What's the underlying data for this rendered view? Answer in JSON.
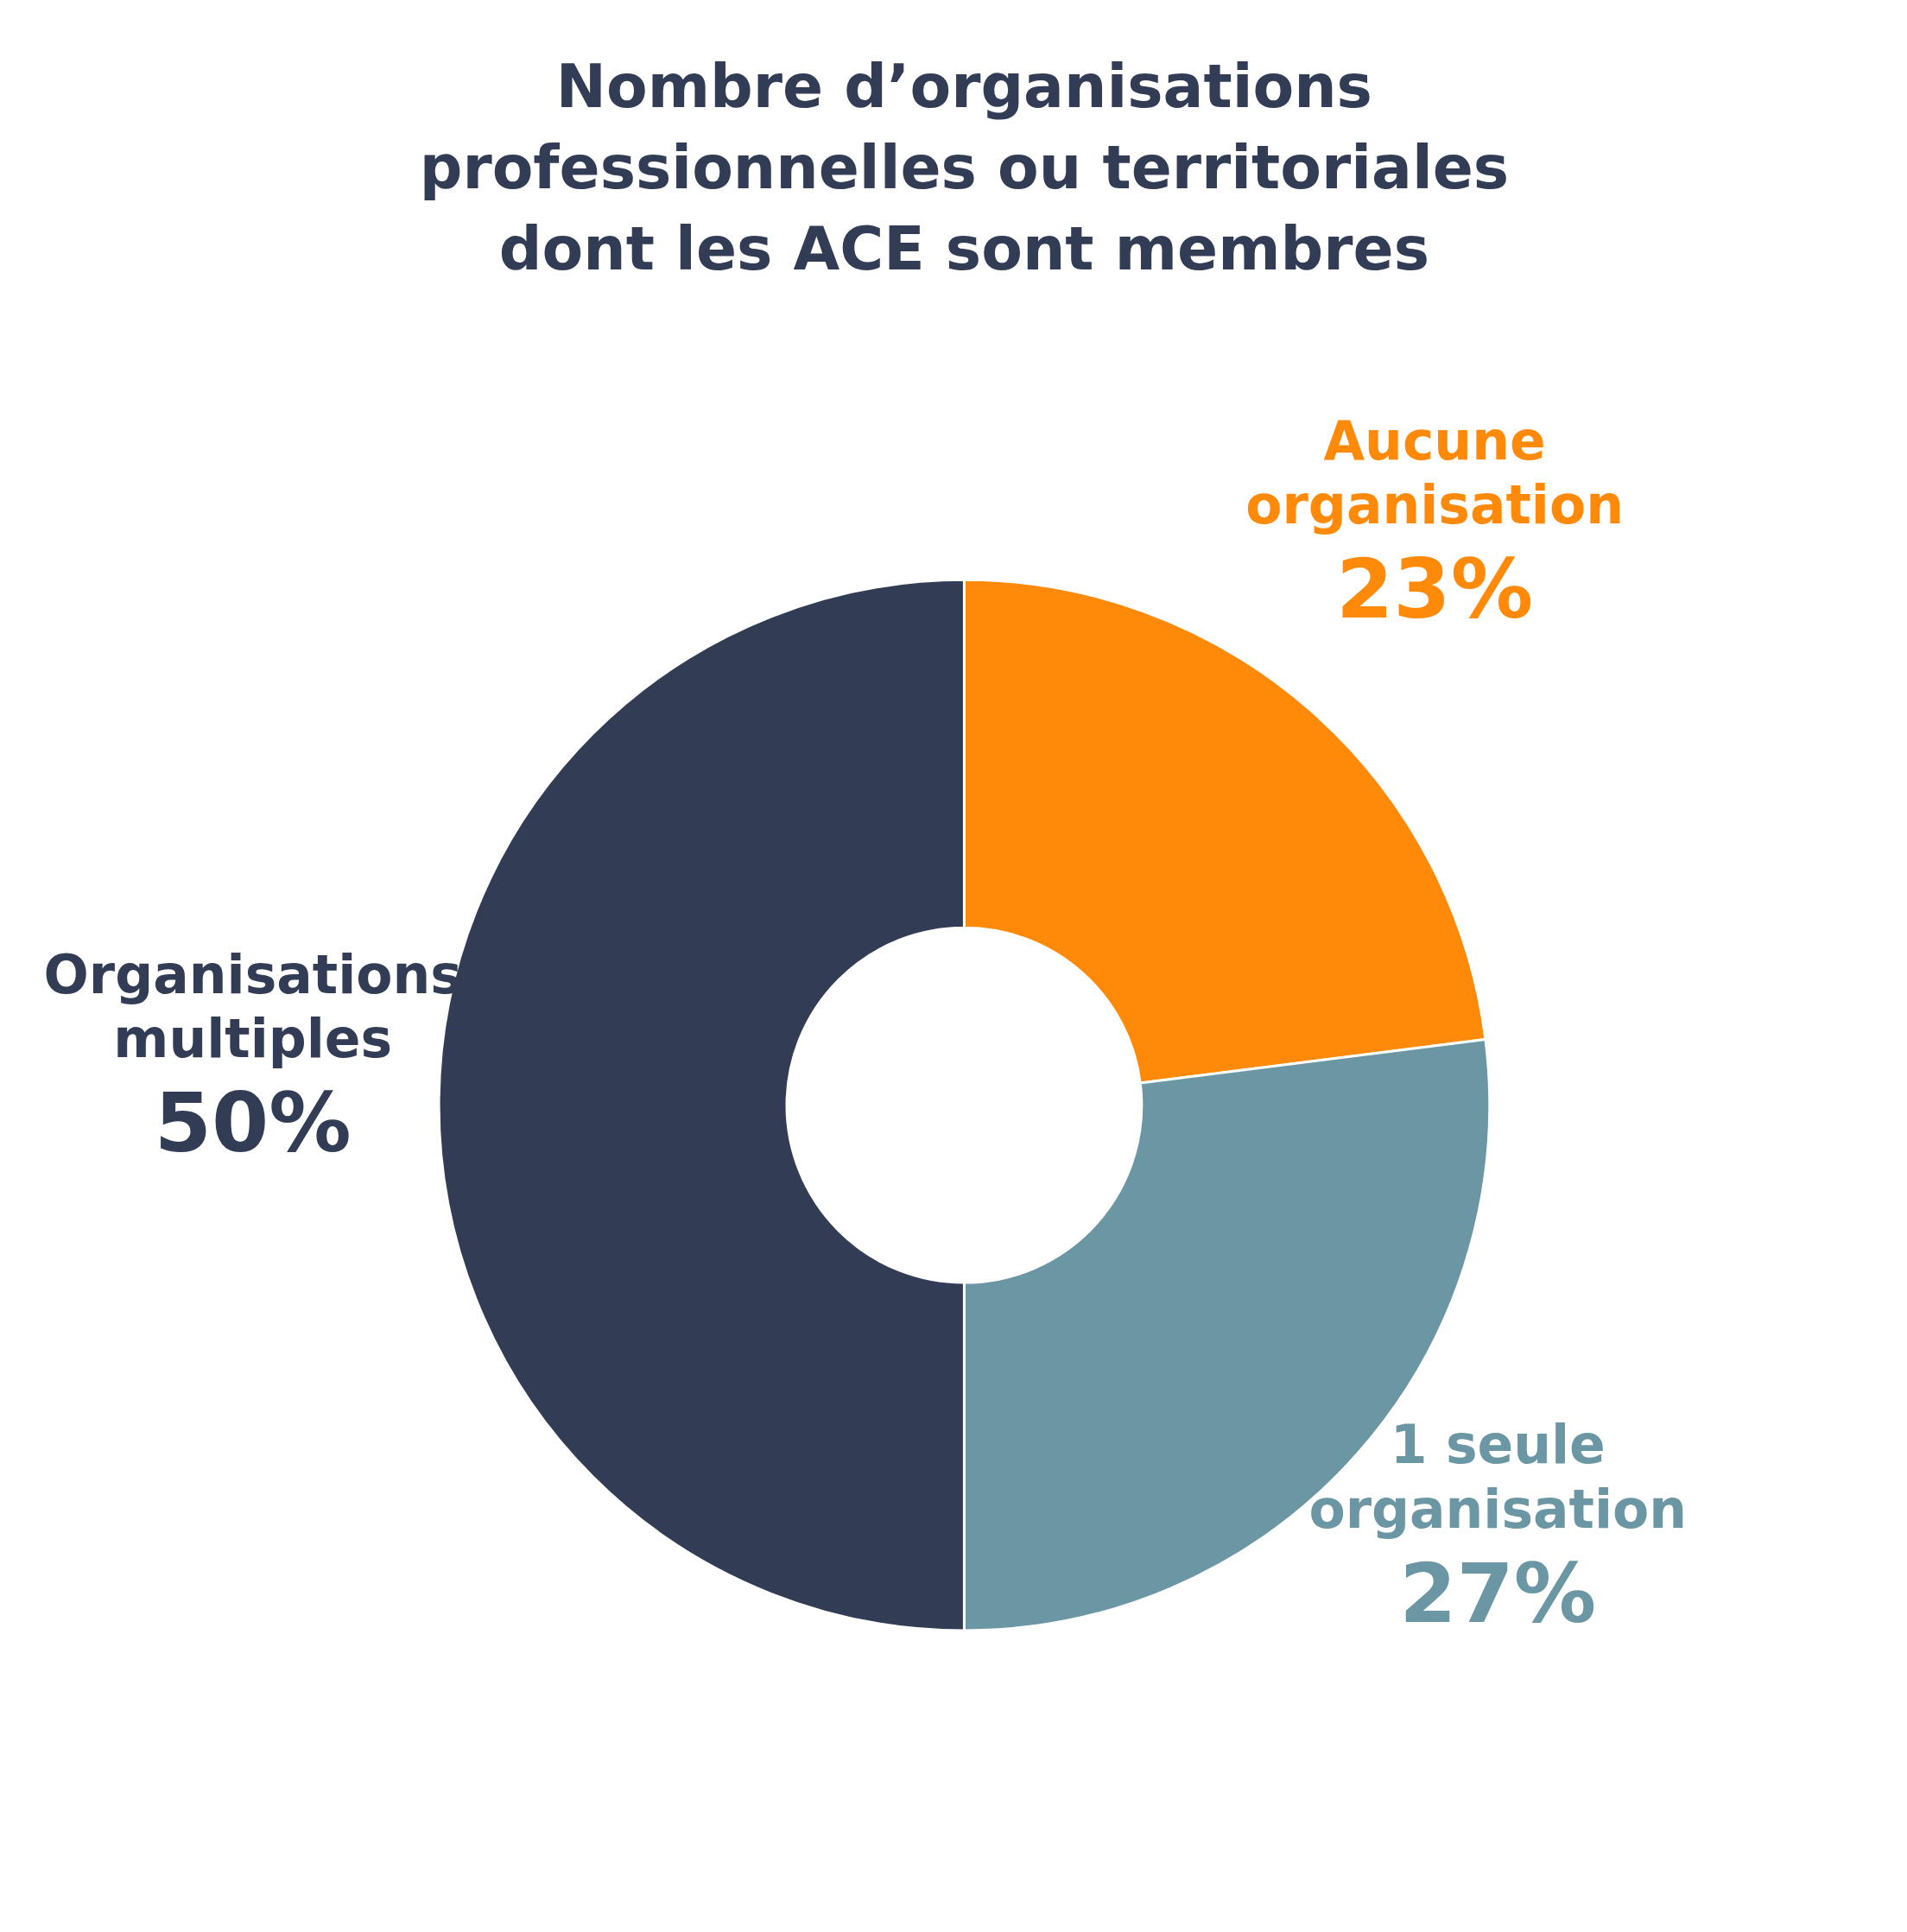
{
  "chart_data": {
    "type": "donut",
    "title": "Nombre d’organisations professionnelles ou territoriales dont les ACE sont membres",
    "categories": [
      "Aucune organisation",
      "1 seule organisation",
      "Organisations multiples"
    ],
    "values": [
      23,
      27,
      50
    ],
    "colors": [
      "#ff8a0a",
      "#6b96a3",
      "#323d55"
    ],
    "value_labels": [
      "23%",
      "27%",
      "50%"
    ]
  }
}
